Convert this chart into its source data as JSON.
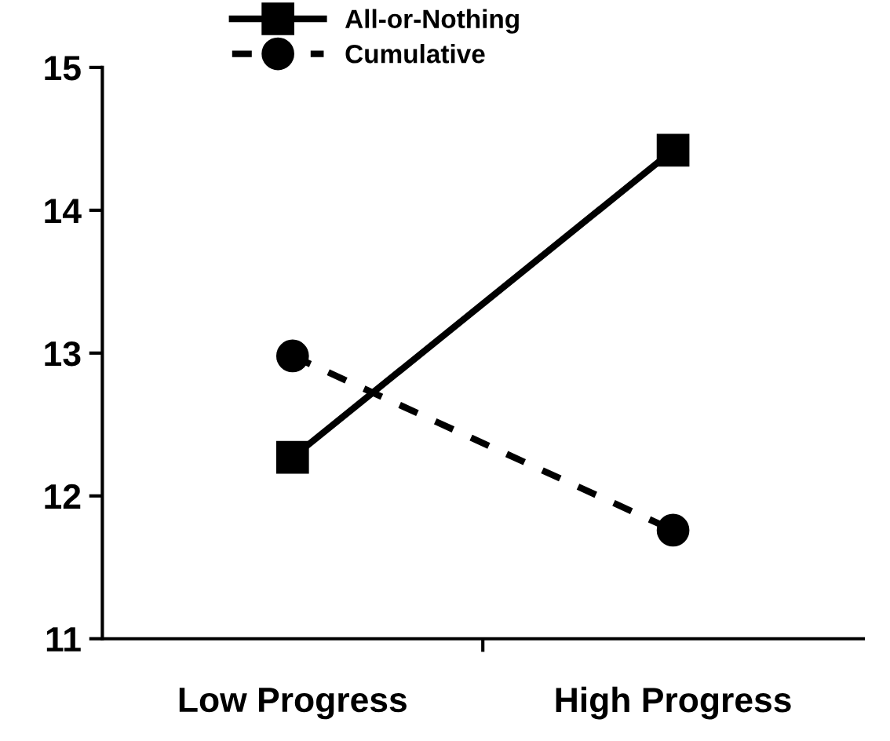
{
  "chart_data": {
    "type": "line",
    "categories": [
      "Low Progress",
      "High Progress"
    ],
    "series": [
      {
        "name": "All-or-Nothing",
        "color": "#000000",
        "values": [
          12.27,
          14.42
        ],
        "marker": "square",
        "line_style": "solid"
      },
      {
        "name": "Cumulative",
        "color": "#000000",
        "values": [
          12.98,
          11.76
        ],
        "marker": "circle",
        "line_style": "dashed"
      }
    ],
    "ylim": [
      11,
      15
    ],
    "yticks": [
      11,
      12,
      13,
      14,
      15
    ],
    "grid": false,
    "legend": "top"
  }
}
